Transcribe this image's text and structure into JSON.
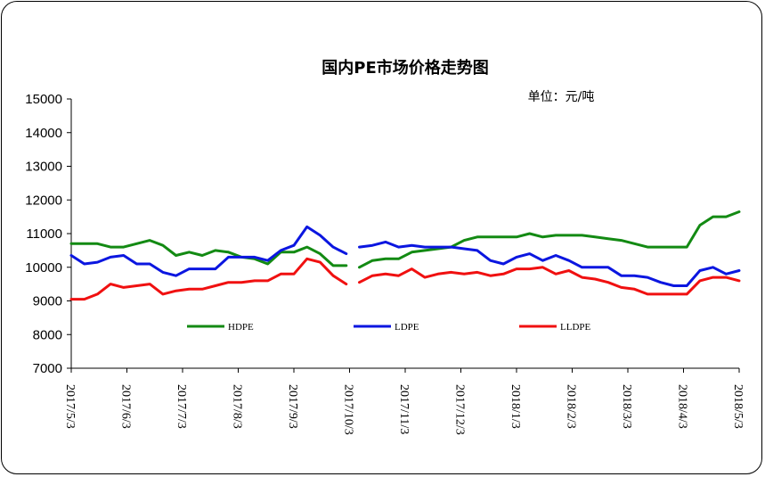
{
  "chart_data": {
    "type": "line",
    "title": "国内PE市场价格走势图",
    "unit_label": "单位：元/吨",
    "xlabel": "",
    "ylabel": "",
    "ylim": [
      7000,
      15000
    ],
    "yticks": [
      7000,
      8000,
      9000,
      10000,
      11000,
      12000,
      13000,
      14000,
      15000
    ],
    "xticks": [
      "2017/5/3",
      "2017/6/3",
      "2017/7/3",
      "2017/8/3",
      "2017/9/3",
      "2017/10/3",
      "2017/11/3",
      "2017/12/3",
      "2018/1/3",
      "2018/2/3",
      "2018/3/3",
      "2018/4/3",
      "2018/5/3"
    ],
    "grid": false,
    "legend_position": "bottom-inside",
    "gap_after_point": 22,
    "series": [
      {
        "name": "HDPE",
        "color": "#138a13",
        "values": [
          10700,
          10700,
          10700,
          10600,
          10600,
          10700,
          10800,
          10650,
          10350,
          10450,
          10350,
          10500,
          10450,
          10300,
          10250,
          10100,
          10450,
          10450,
          10600,
          10400,
          10050,
          10050,
          10000,
          10200,
          10250,
          10250,
          10450,
          10500,
          10550,
          10600,
          10800,
          10900,
          10900,
          10900,
          10900,
          11000,
          10900,
          10950,
          10950,
          10950,
          10900,
          10850,
          10800,
          10700,
          10600,
          10600,
          10600,
          10600,
          11250,
          11500,
          11500,
          11650
        ]
      },
      {
        "name": "LDPE",
        "color": "#0b16e0",
        "values": [
          10350,
          10100,
          10150,
          10300,
          10350,
          10100,
          10100,
          9850,
          9750,
          9950,
          9950,
          9950,
          10300,
          10300,
          10300,
          10200,
          10500,
          10650,
          11200,
          10950,
          10600,
          10400,
          10600,
          10650,
          10750,
          10600,
          10650,
          10600,
          10600,
          10600,
          10550,
          10500,
          10200,
          10100,
          10300,
          10400,
          10200,
          10350,
          10200,
          10000,
          10000,
          10000,
          9750,
          9750,
          9700,
          9550,
          9450,
          9450,
          9900,
          10000,
          9800,
          9900
        ]
      },
      {
        "name": "LLDPE",
        "color": "#f01010",
        "values": [
          9050,
          9050,
          9200,
          9500,
          9400,
          9450,
          9500,
          9200,
          9300,
          9350,
          9350,
          9450,
          9550,
          9550,
          9600,
          9600,
          9800,
          9800,
          10250,
          10150,
          9750,
          9500,
          9550,
          9750,
          9800,
          9750,
          9950,
          9700,
          9800,
          9850,
          9800,
          9850,
          9750,
          9800,
          9950,
          9950,
          10000,
          9800,
          9900,
          9700,
          9650,
          9550,
          9400,
          9350,
          9200,
          9200,
          9200,
          9200,
          9600,
          9700,
          9700,
          9600
        ]
      }
    ]
  }
}
